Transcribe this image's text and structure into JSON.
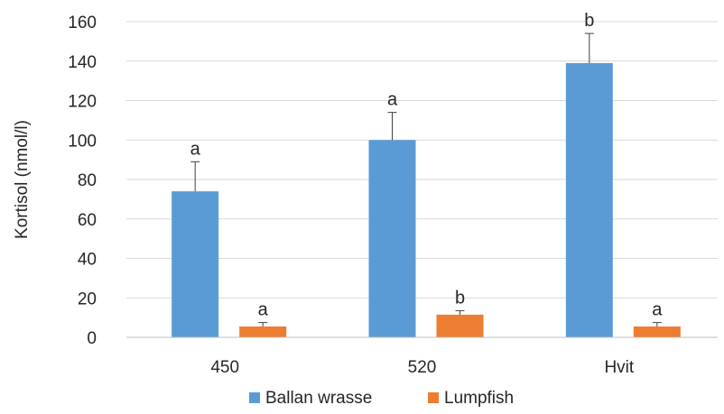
{
  "chart_data": {
    "type": "bar",
    "title": "",
    "xlabel": "",
    "ylabel": "Kortisol (nmol/l)",
    "ylim": [
      0,
      160
    ],
    "yticks": [
      0,
      20,
      40,
      60,
      80,
      100,
      120,
      140,
      160
    ],
    "grid": true,
    "legend_position": "bottom",
    "categories": [
      "450",
      "520",
      "Hvit"
    ],
    "series": [
      {
        "name": "Ballan wrasse",
        "color": "#5B9BD5",
        "values": [
          74,
          100,
          139
        ],
        "error": [
          15,
          14,
          15
        ],
        "significance": [
          "a",
          "a",
          "b"
        ]
      },
      {
        "name": "Lumpfish",
        "color": "#ED7D31",
        "values": [
          5.5,
          11.5,
          5.5
        ],
        "error": [
          2,
          2,
          2
        ],
        "significance": [
          "a",
          "b",
          "a"
        ]
      }
    ]
  }
}
